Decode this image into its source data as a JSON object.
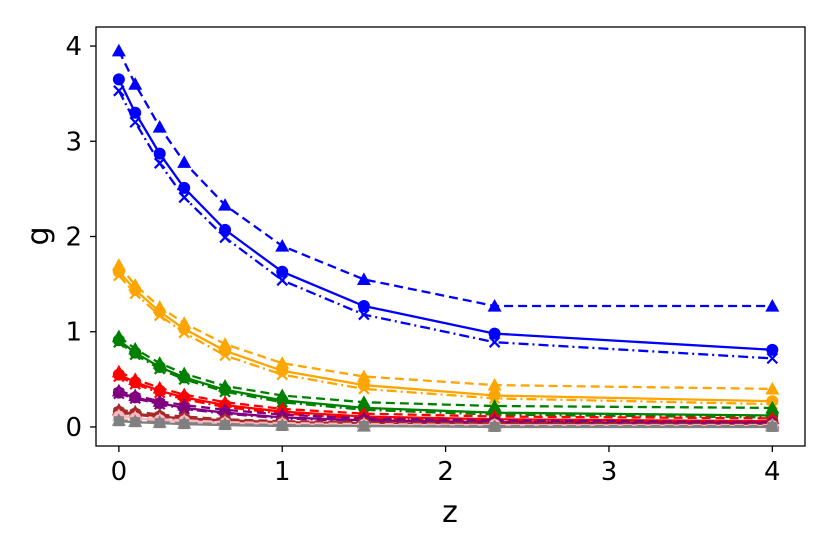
{
  "chart_data": {
    "type": "line",
    "title": "",
    "xlabel": "z",
    "ylabel": "g",
    "xlim": [
      -0.14,
      4.2
    ],
    "ylim": [
      -0.2,
      4.2
    ],
    "x_ticks": [
      0,
      1,
      2,
      3,
      4
    ],
    "y_ticks": [
      0,
      1,
      2,
      3,
      4
    ],
    "grid": false,
    "x": [
      0,
      0.1,
      0.25,
      0.4,
      0.65,
      1.0,
      1.5,
      2.3,
      4.0
    ],
    "series": [
      {
        "color": "#0000ff",
        "linestyle": "dashed",
        "marker": "triangle",
        "values": [
          3.95,
          3.6,
          3.15,
          2.78,
          2.33,
          1.9,
          1.55,
          1.27,
          1.27
        ]
      },
      {
        "color": "#0000ff",
        "linestyle": "solid",
        "marker": "circle",
        "values": [
          3.65,
          3.3,
          2.87,
          2.51,
          2.07,
          1.63,
          1.27,
          0.98,
          0.81
        ]
      },
      {
        "color": "#0000ff",
        "linestyle": "dashdot",
        "marker": "x",
        "values": [
          3.53,
          3.2,
          2.77,
          2.41,
          1.99,
          1.54,
          1.18,
          0.89,
          0.72
        ]
      },
      {
        "color": "#ffa500",
        "linestyle": "dashed",
        "marker": "triangle",
        "values": [
          1.7,
          1.49,
          1.26,
          1.09,
          0.87,
          0.67,
          0.53,
          0.44,
          0.4
        ]
      },
      {
        "color": "#ffa500",
        "linestyle": "solid",
        "marker": "circle",
        "values": [
          1.63,
          1.44,
          1.21,
          1.03,
          0.8,
          0.59,
          0.44,
          0.33,
          0.27
        ]
      },
      {
        "color": "#ffa500",
        "linestyle": "dashdot",
        "marker": "x",
        "values": [
          1.59,
          1.4,
          1.17,
          0.99,
          0.75,
          0.55,
          0.4,
          0.3,
          0.24
        ]
      },
      {
        "color": "#008000",
        "linestyle": "dashed",
        "marker": "triangle",
        "values": [
          0.95,
          0.82,
          0.67,
          0.56,
          0.43,
          0.33,
          0.26,
          0.22,
          0.2
        ]
      },
      {
        "color": "#008000",
        "linestyle": "solid",
        "marker": "circle",
        "values": [
          0.91,
          0.78,
          0.63,
          0.52,
          0.39,
          0.28,
          0.2,
          0.15,
          0.12
        ]
      },
      {
        "color": "#008000",
        "linestyle": "dashdot",
        "marker": "x",
        "values": [
          0.89,
          0.76,
          0.61,
          0.5,
          0.37,
          0.26,
          0.18,
          0.13,
          0.1
        ]
      },
      {
        "color": "#ff0000",
        "linestyle": "dashed",
        "marker": "triangle",
        "values": [
          0.58,
          0.5,
          0.41,
          0.34,
          0.26,
          0.19,
          0.14,
          0.11,
          0.09
        ]
      },
      {
        "color": "#ff0000",
        "linestyle": "solid",
        "marker": "circle",
        "values": [
          0.55,
          0.47,
          0.38,
          0.31,
          0.23,
          0.16,
          0.11,
          0.08,
          0.06
        ]
      },
      {
        "color": "#ff0000",
        "linestyle": "dashdot",
        "marker": "x",
        "values": [
          0.53,
          0.45,
          0.36,
          0.29,
          0.21,
          0.14,
          0.09,
          0.07,
          0.05
        ]
      },
      {
        "color": "#800080",
        "linestyle": "dashed",
        "marker": "triangle",
        "values": [
          0.38,
          0.33,
          0.27,
          0.23,
          0.18,
          0.13,
          0.09,
          0.07,
          0.05
        ]
      },
      {
        "color": "#800080",
        "linestyle": "solid",
        "marker": "circle",
        "values": [
          0.36,
          0.31,
          0.25,
          0.2,
          0.15,
          0.1,
          0.07,
          0.05,
          0.04
        ]
      },
      {
        "color": "#800080",
        "linestyle": "dashdot",
        "marker": "x",
        "values": [
          0.35,
          0.3,
          0.24,
          0.19,
          0.14,
          0.09,
          0.06,
          0.04,
          0.03
        ]
      },
      {
        "color": "#a52a2a",
        "linestyle": "dashed",
        "marker": "triangle",
        "values": [
          0.18,
          0.16,
          0.13,
          0.11,
          0.08,
          0.06,
          0.05,
          0.04,
          0.03
        ]
      },
      {
        "color": "#a52a2a",
        "linestyle": "solid",
        "marker": "circle",
        "values": [
          0.16,
          0.14,
          0.11,
          0.09,
          0.07,
          0.05,
          0.04,
          0.03,
          0.02
        ]
      },
      {
        "color": "#a52a2a",
        "linestyle": "dashdot",
        "marker": "x",
        "values": [
          0.15,
          0.13,
          0.1,
          0.08,
          0.06,
          0.04,
          0.03,
          0.02,
          0.02
        ]
      },
      {
        "color": "#ffb6c1",
        "linestyle": "dashed",
        "marker": "triangle",
        "values": [
          0.12,
          0.1,
          0.08,
          0.07,
          0.05,
          0.04,
          0.03,
          0.02,
          0.02
        ]
      },
      {
        "color": "#ffb6c1",
        "linestyle": "solid",
        "marker": "circle",
        "values": [
          0.11,
          0.09,
          0.07,
          0.06,
          0.04,
          0.03,
          0.02,
          0.02,
          0.01
        ]
      },
      {
        "color": "#808080",
        "linestyle": "dashed",
        "marker": "triangle",
        "values": [
          0.07,
          0.06,
          0.05,
          0.04,
          0.03,
          0.02,
          0.01,
          0.01,
          0.01
        ]
      },
      {
        "color": "#808080",
        "linestyle": "solid",
        "marker": "square",
        "values": [
          0.06,
          0.05,
          0.04,
          0.03,
          0.02,
          0.01,
          0.01,
          0.0,
          0.0
        ]
      }
    ]
  }
}
